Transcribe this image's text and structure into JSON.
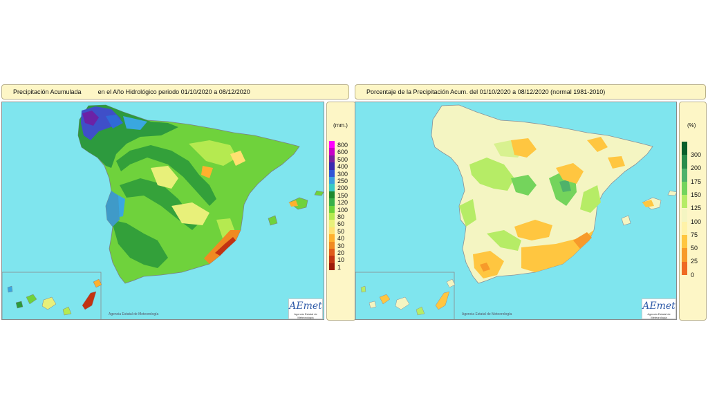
{
  "left_panel": {
    "title_part1": "Precipitación Acumulada",
    "title_part2": "en el Año Hidrológico  periodo 01/10/2020 a 08/12/2020",
    "legend_unit": "(mm.)",
    "legend_labels": [
      "800",
      "600",
      "500",
      "400",
      "300",
      "250",
      "200",
      "150",
      "120",
      "100",
      "80",
      "60",
      "50",
      "40",
      "30",
      "20",
      "10",
      "1"
    ],
    "legend_colors": [
      "#ff00ff",
      "#c800c8",
      "#7a1fa0",
      "#3a2ab0",
      "#2f55d6",
      "#3a9ee0",
      "#38c9c4",
      "#1f8a30",
      "#38b04a",
      "#6cd23a",
      "#b5ea50",
      "#e8f07a",
      "#ffe070",
      "#ffb02e",
      "#f08a22",
      "#e05a1a",
      "#c23312",
      "#9c1a0a"
    ]
  },
  "right_panel": {
    "title": "Porcentaje de la Precipitación Acum. del 01/10/2020 a  08/12/2020  (normal 1981-2010)",
    "legend_unit": "(%)",
    "legend_labels": [
      "300",
      "200",
      "175",
      "150",
      "125",
      "100",
      "75",
      "50",
      "25",
      "0"
    ],
    "legend_colors": [
      "#0a5e2a",
      "#2a8c4a",
      "#4fb26a",
      "#74d45c",
      "#b6ec66",
      "#f4f5c2",
      "#fff2a8",
      "#ffc640",
      "#f79a2a",
      "#ef6a22"
    ]
  },
  "credit": "Agencia Estatal de Meteorología",
  "logo": {
    "text": "AEmet",
    "subtext": "Agencia Estatal de Meteorología"
  },
  "colors": {
    "sea": "#7fe5ee",
    "panel_bg": "#fdf6c6"
  }
}
